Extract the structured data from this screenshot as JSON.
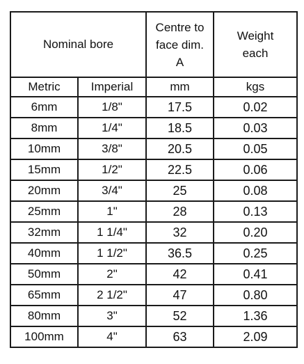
{
  "table": {
    "header": {
      "nominal_bore": "Nominal bore",
      "centre_face": [
        "Centre to",
        "face dim.",
        "A"
      ],
      "weight": [
        "Weight",
        "each"
      ]
    },
    "subheader": [
      "Metric",
      "Imperial",
      "mm",
      "kgs"
    ],
    "rows": [
      [
        "6mm",
        "1/8\"",
        "17.5",
        "0.02"
      ],
      [
        "8mm",
        "1/4\"",
        "18.5",
        "0.03"
      ],
      [
        "10mm",
        "3/8\"",
        "20.5",
        "0.05"
      ],
      [
        "15mm",
        "1/2\"",
        "22.5",
        "0.06"
      ],
      [
        "20mm",
        "3/4\"",
        "25",
        "0.08"
      ],
      [
        "25mm",
        "1\"",
        "28",
        "0.13"
      ],
      [
        "32mm",
        "1 1/4\"",
        "32",
        "0.20"
      ],
      [
        "40mm",
        "1 1/2\"",
        "36.5",
        "0.25"
      ],
      [
        "50mm",
        "2\"",
        "42",
        "0.41"
      ],
      [
        "65mm",
        "2 1/2\"",
        "47",
        "0.80"
      ],
      [
        "80mm",
        "3\"",
        "52",
        "1.36"
      ],
      [
        "100mm",
        "4\"",
        "63",
        "2.09"
      ]
    ]
  }
}
